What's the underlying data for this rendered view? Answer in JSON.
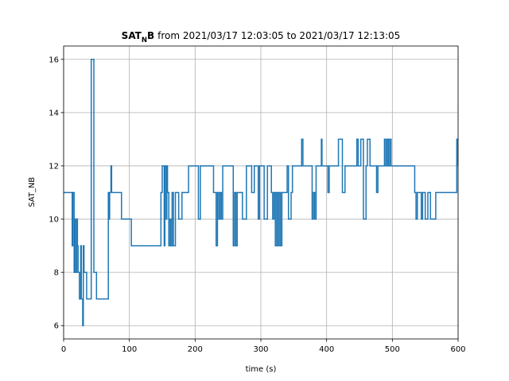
{
  "chart_data": {
    "type": "line",
    "step": "post",
    "title": {
      "bold": "SAT",
      "subscript": "N",
      "bold_after": "B",
      "text": "from 2021/03/17 12:03:05 to 2021/03/17 12:13:05"
    },
    "xlabel": "time (s)",
    "ylabel": "SAT_NB",
    "xlim": [
      0,
      600
    ],
    "ylim": [
      5.5,
      16.5
    ],
    "xticks": [
      0,
      100,
      200,
      300,
      400,
      500,
      600
    ],
    "yticks": [
      6,
      8,
      10,
      12,
      14,
      16
    ],
    "grid": true,
    "series": [
      {
        "name": "SAT_NB",
        "color": "#1f77b4",
        "x": [
          0,
          13,
          14,
          16,
          17,
          18,
          20,
          21,
          22,
          24,
          26,
          27,
          29,
          30,
          31,
          35,
          42,
          46,
          50,
          68,
          69,
          70,
          72,
          73,
          88,
          103,
          148,
          150,
          153,
          154,
          156,
          157,
          158,
          160,
          162,
          163,
          165,
          167,
          170,
          175,
          180,
          190,
          205,
          208,
          228,
          232,
          234,
          236,
          238,
          240,
          242,
          258,
          260,
          262,
          264,
          272,
          278,
          286,
          290,
          296,
          298,
          305,
          310,
          316,
          318,
          320,
          322,
          324,
          326,
          328,
          330,
          332,
          340,
          342,
          346,
          348,
          362,
          364,
          378,
          380,
          382,
          384,
          392,
          393,
          402,
          404,
          418,
          424,
          428,
          446,
          448,
          452,
          456,
          460,
          462,
          466,
          476,
          478,
          488,
          490,
          492,
          494,
          496,
          498,
          534,
          536,
          538,
          544,
          546,
          550,
          554,
          558,
          566,
          598,
          600
        ],
        "values": [
          11,
          9,
          11,
          8,
          10,
          8,
          10,
          9,
          8,
          7,
          9,
          7,
          6,
          9,
          8,
          7,
          16,
          8,
          7,
          11,
          10,
          11,
          12,
          11,
          10,
          9,
          11,
          12,
          9,
          12,
          10,
          12,
          11,
          9,
          10,
          9,
          11,
          9,
          11,
          10,
          11,
          12,
          10,
          12,
          11,
          9,
          11,
          10,
          11,
          10,
          12,
          9,
          11,
          9,
          11,
          10,
          12,
          11,
          12,
          10,
          12,
          10,
          12,
          11,
          10,
          11,
          9,
          11,
          9,
          11,
          9,
          11,
          12,
          10,
          11,
          12,
          13,
          12,
          10,
          11,
          10,
          12,
          13,
          12,
          11,
          12,
          13,
          11,
          12,
          13,
          12,
          13,
          10,
          12,
          13,
          12,
          11,
          12,
          13,
          12,
          13,
          12,
          13,
          12,
          11,
          10,
          11,
          10,
          11,
          10,
          11,
          10,
          11,
          13,
          12
        ]
      }
    ]
  }
}
